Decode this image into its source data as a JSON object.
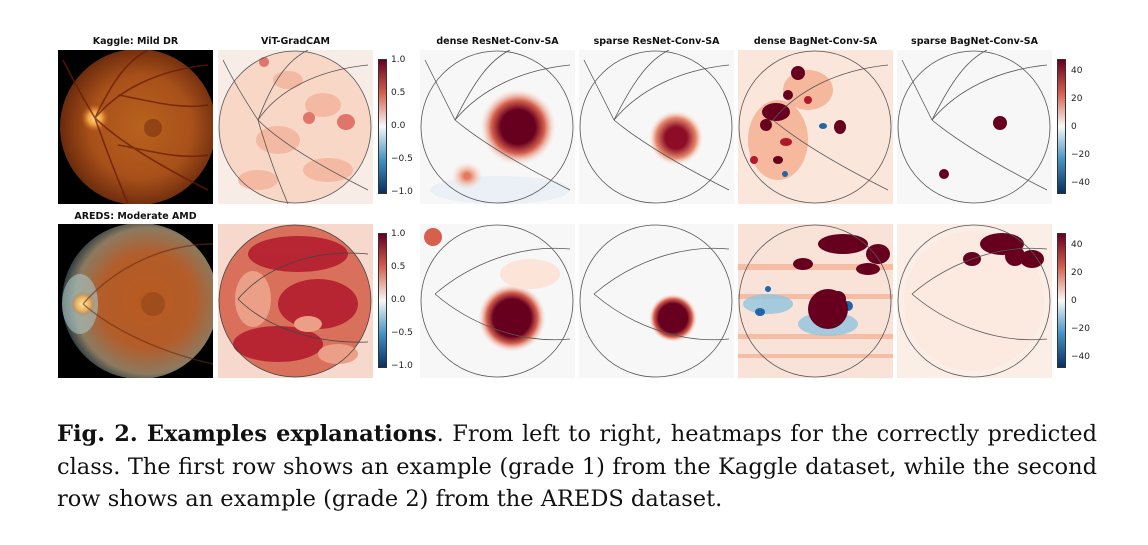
{
  "figure": {
    "column_titles": [
      "Kaggle: Mild DR",
      "ViT-GradCAM",
      "dense ResNet-Conv-SA",
      "sparse ResNet-Conv-SA",
      "dense BagNet-Conv-SA",
      "sparse BagNet-Conv-SA"
    ],
    "row_titles": [
      "Kaggle: Mild DR",
      "AREDS: Moderate AMD"
    ],
    "colorbar_gradcam": {
      "ticks": [
        "1.0",
        "0.5",
        "0.0",
        "−0.5",
        "−1.0"
      ],
      "colormap": [
        "#053061",
        "#f7f7f7",
        "#67001f"
      ]
    },
    "colorbar_attribution": {
      "ticks": [
        "40",
        "20",
        "0",
        "−20",
        "−40"
      ],
      "colormap": [
        "#053061",
        "#f7f7f7",
        "#67001f"
      ]
    },
    "heat_colors": {
      "dark_red": "#67001f",
      "red": "#b2182b",
      "salmon": "#f4a582",
      "light": "#fddbc7",
      "neutral": "#f7f7f7",
      "blue": "#2166ac",
      "dark_blue": "#053061"
    }
  },
  "caption": {
    "label": "Fig. 2. Examples explanations",
    "text": ". From left to right, heatmaps for the correctly predicted class. The first row shows an example (grade 1) from the Kaggle dataset, while the second row shows an example (grade 2) from the AREDS dataset."
  }
}
